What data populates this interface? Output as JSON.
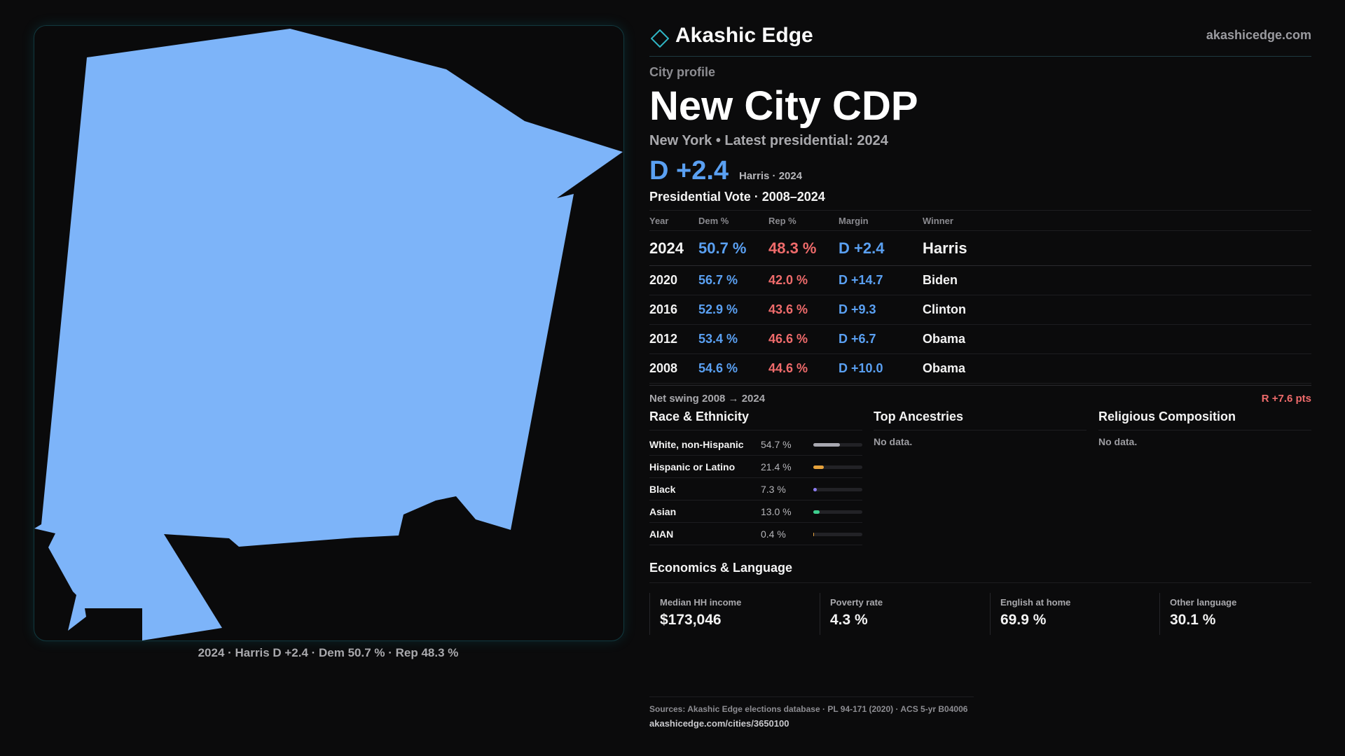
{
  "colors": {
    "dem": "#5aa0f2",
    "rep": "#ef6b6b",
    "map_fill": "#7db4f9",
    "accent": "#2fb5c4"
  },
  "map": {
    "caption": "2024 · Harris D +2.4 · Dem 50.7 % · Rep 48.3 %"
  },
  "brand": {
    "logo_icon": "diamond-outline-icon",
    "name": "Akashic Edge",
    "url": "akashicedge.com"
  },
  "profile": {
    "kicker": "City profile",
    "title": "New City CDP",
    "subtitle": "New York • Latest presidential: 2024",
    "headline_margin": "D +2.4",
    "headline_meta": "Harris · 2024"
  },
  "presidential": {
    "heading": "Presidential Vote · 2008–2024",
    "columns": [
      "Year",
      "Dem %",
      "Rep %",
      "Margin",
      "Winner"
    ],
    "rows": [
      {
        "year": "2024",
        "dem": "50.7 %",
        "rep": "48.3 %",
        "margin": "D +2.4",
        "winner": "Harris"
      },
      {
        "year": "2020",
        "dem": "56.7 %",
        "rep": "42.0 %",
        "margin": "D +14.7",
        "winner": "Biden"
      },
      {
        "year": "2016",
        "dem": "52.9 %",
        "rep": "43.6 %",
        "margin": "D +9.3",
        "winner": "Clinton"
      },
      {
        "year": "2012",
        "dem": "53.4 %",
        "rep": "46.6 %",
        "margin": "D +6.7",
        "winner": "Obama"
      },
      {
        "year": "2008",
        "dem": "54.6 %",
        "rep": "44.6 %",
        "margin": "D +10.0",
        "winner": "Obama"
      }
    ],
    "swing_label": "Net swing 2008 → 2024",
    "swing_value": "R +7.6 pts"
  },
  "race": {
    "heading": "Race & Ethnicity",
    "rows": [
      {
        "name": "White, non-Hispanic",
        "pct": "54.7 %",
        "value": 54.7,
        "color": "#a8a8b0"
      },
      {
        "name": "Hispanic or Latino",
        "pct": "21.4 %",
        "value": 21.4,
        "color": "#e6a23c"
      },
      {
        "name": "Black",
        "pct": "7.3 %",
        "value": 7.3,
        "color": "#8c7cf0"
      },
      {
        "name": "Asian",
        "pct": "13.0 %",
        "value": 13.0,
        "color": "#3ecf8e"
      },
      {
        "name": "AIAN",
        "pct": "0.4 %",
        "value": 0.4,
        "color": "#e6a23c"
      }
    ]
  },
  "ancestries": {
    "heading": "Top Ancestries",
    "empty": "No data."
  },
  "religion": {
    "heading": "Religious Composition",
    "empty": "No data."
  },
  "economics": {
    "heading": "Economics & Language",
    "stats": [
      {
        "label": "Median HH income",
        "value": "$173,046"
      },
      {
        "label": "Poverty rate",
        "value": "4.3 %"
      },
      {
        "label": "English at home",
        "value": "69.9 %"
      },
      {
        "label": "Other language",
        "value": "30.1 %"
      }
    ]
  },
  "footer": {
    "sources": "Sources: Akashic Edge elections database · PL 94-171 (2020) · ACS 5-yr B04006",
    "url": "akashicedge.com/cities/3650100"
  }
}
